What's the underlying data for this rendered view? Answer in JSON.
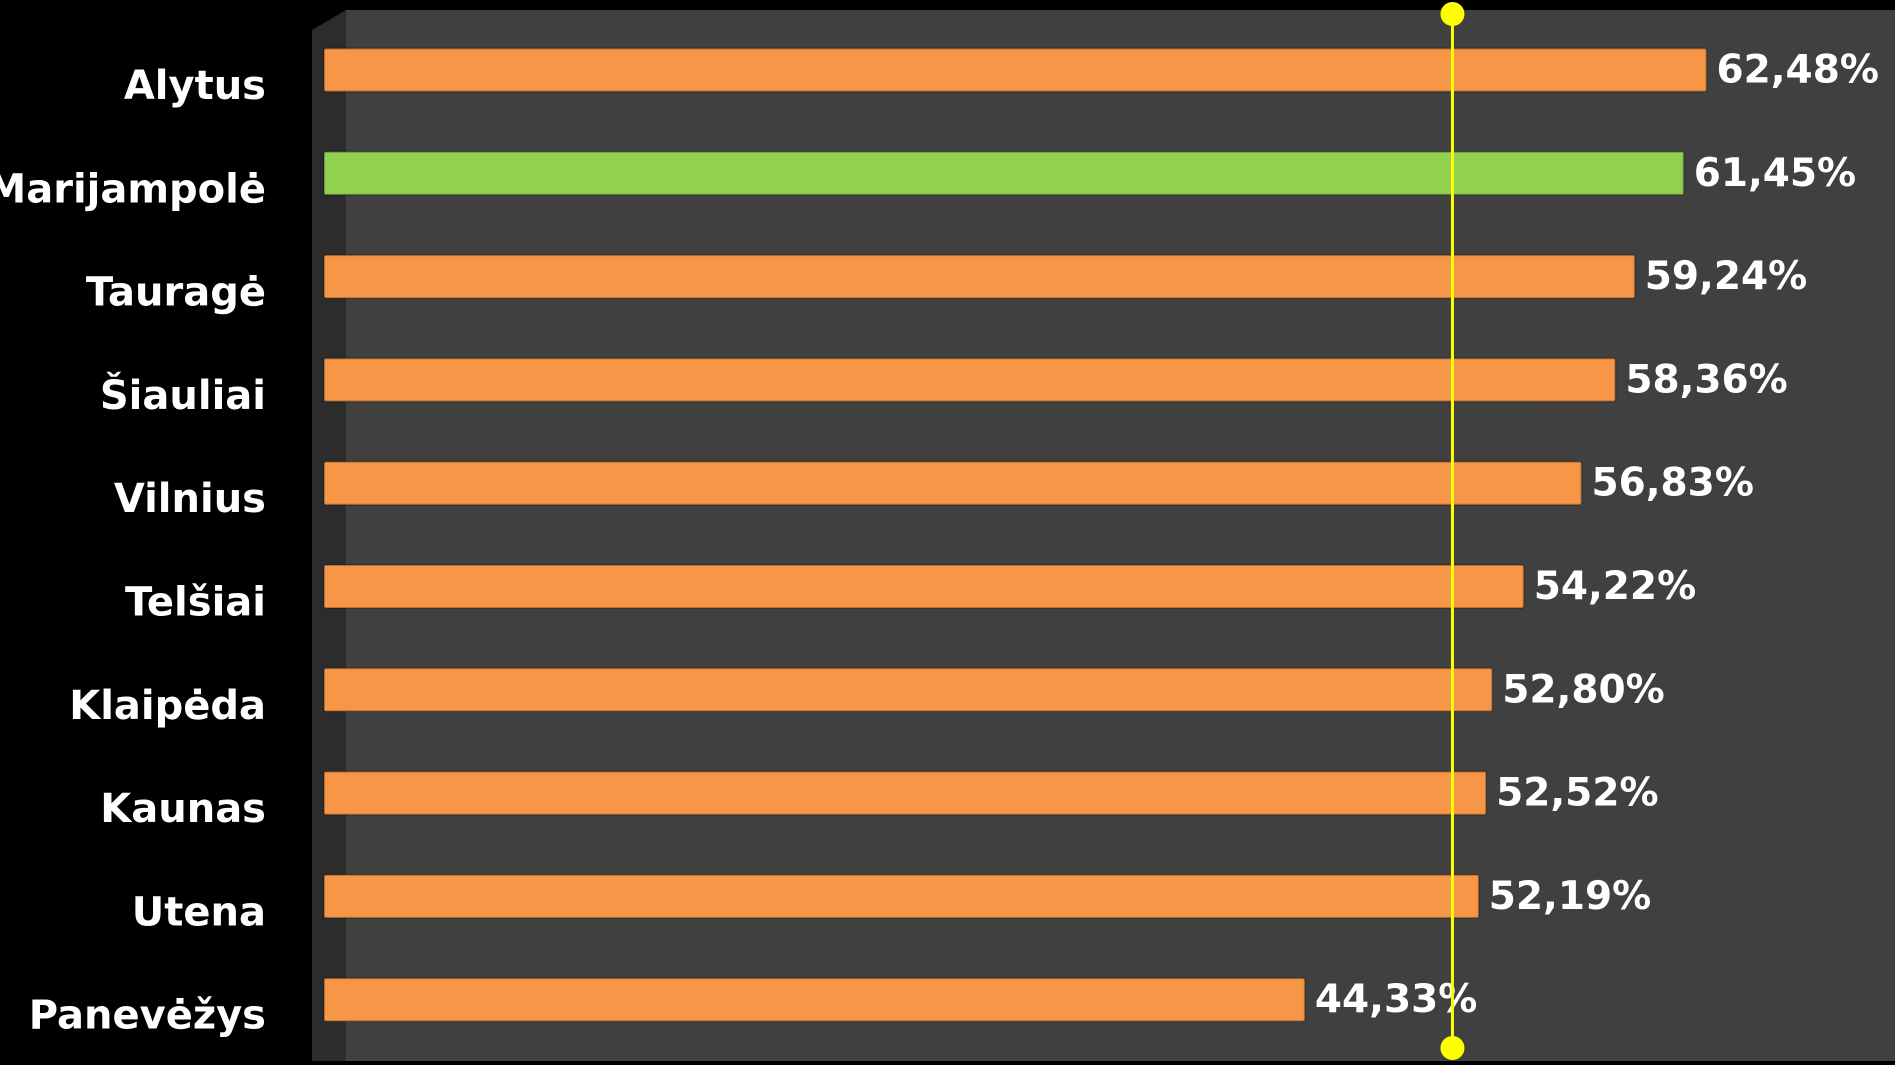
{
  "chart_data": {
    "type": "bar",
    "orientation": "horizontal",
    "categories": [
      "Alytus",
      "Marijampolė",
      "Tauragė",
      "Šiauliai",
      "Vilnius",
      "Telšiai",
      "Klaipėda",
      "Kaunas",
      "Utena",
      "Panevėžys"
    ],
    "values": [
      62.48,
      61.45,
      59.24,
      58.36,
      56.83,
      54.22,
      52.8,
      52.52,
      52.19,
      44.33
    ],
    "value_labels": [
      "62,48%",
      "61,45%",
      "59,24%",
      "58,36%",
      "56,83%",
      "54,22%",
      "52,80%",
      "52,52%",
      "52,19%",
      "44,33%"
    ],
    "colors": [
      "#f79646",
      "#92d050",
      "#f79646",
      "#f79646",
      "#f79646",
      "#f79646",
      "#f79646",
      "#f79646",
      "#f79646",
      "#f79646"
    ],
    "xlim": [
      0,
      71
    ],
    "reference_line": {
      "value": 51,
      "color": "#ffff00"
    }
  }
}
